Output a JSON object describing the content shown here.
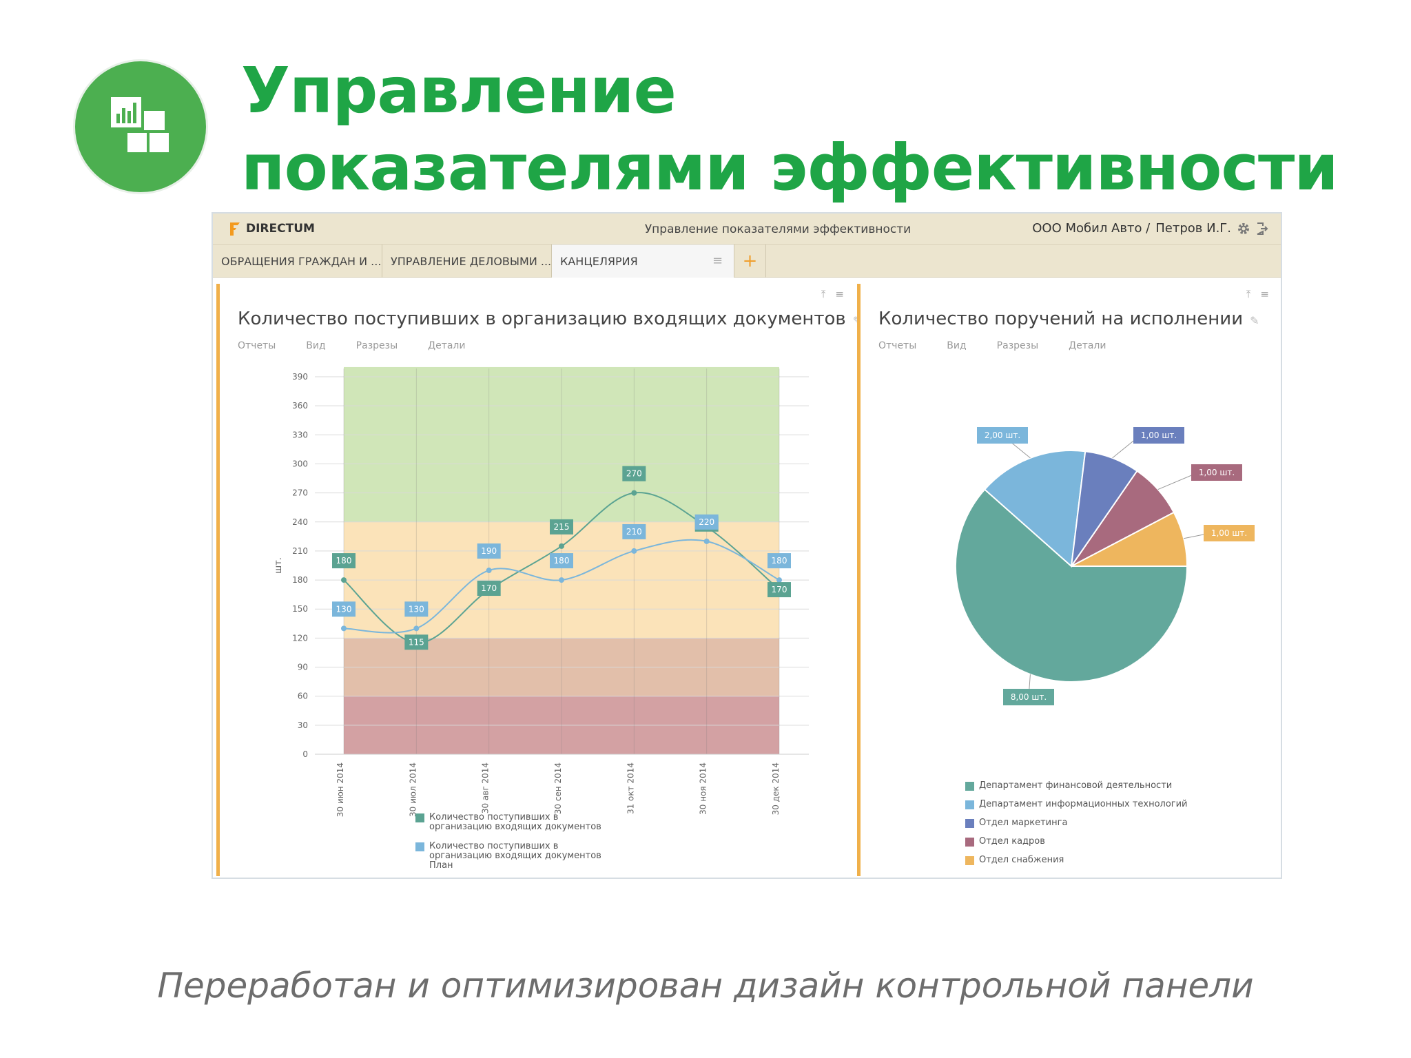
{
  "slide": {
    "title_line1": "Управление",
    "title_line2": "показателями эффективности",
    "caption": "Переработан и оптимизирован дизайн контрольной панели",
    "logo_icon": "dashboard-icon"
  },
  "app": {
    "brand": "DIRECTUM",
    "title": "Управление показателями эффективности",
    "org": "ООО Мобил Авто /",
    "user": "Петров И.Г.",
    "tabs": [
      {
        "label": "ОБРАЩЕНИЯ ГРАЖДАН И ..."
      },
      {
        "label": "УПРАВЛЕНИЕ ДЕЛОВЫМИ ..."
      },
      {
        "label": "КАНЦЕЛЯРИЯ"
      }
    ],
    "add_tab": "+"
  },
  "left_panel": {
    "title": "Количество поступивших в организацию входящих документов",
    "menu": [
      "Отчеты",
      "Вид",
      "Разрезы",
      "Детали"
    ]
  },
  "right_panel": {
    "title": "Количество поручений на исполнении",
    "menu": [
      "Отчеты",
      "Вид",
      "Разрезы",
      "Детали"
    ]
  },
  "chart_data": [
    {
      "type": "line",
      "title": "Количество поступивших в организацию входящих документов",
      "ylabel": "шт.",
      "ylim": [
        0,
        390
      ],
      "yticks": [
        0,
        30,
        60,
        90,
        120,
        150,
        180,
        210,
        240,
        270,
        300,
        330,
        360,
        390
      ],
      "categories": [
        "30 июн 2014",
        "30 июл 2014",
        "30 авг 2014",
        "30 сен 2014",
        "31 окт 2014",
        "30 ноя 2014",
        "30 дек 2014"
      ],
      "bands": [
        {
          "from": 0,
          "to": 60,
          "color": "#d3a1a3"
        },
        {
          "from": 60,
          "to": 120,
          "color": "#e2bfaa"
        },
        {
          "from": 120,
          "to": 240,
          "color": "#fbe3b9"
        },
        {
          "from": 240,
          "to": 400,
          "color": "#d0e6b8"
        }
      ],
      "series": [
        {
          "name": "Количество поступивших в организацию входящих документов",
          "color": "#5ba392",
          "values": [
            180,
            115,
            170,
            215,
            270,
            235,
            170
          ]
        },
        {
          "name": "Количество поступивших в организацию входящих документов План",
          "color": "#7bb6db",
          "values": [
            130,
            130,
            190,
            180,
            210,
            220,
            180
          ]
        }
      ],
      "grid": true,
      "legend": "bottom"
    },
    {
      "type": "pie",
      "title": "Количество поручений на исполнении",
      "slices": [
        {
          "name": "Департамент финансовой деятельности",
          "value": 8,
          "label": "8,00 шт.",
          "color": "#63a89c"
        },
        {
          "name": "Департамент информационных технологий",
          "value": 2,
          "label": "2,00 шт.",
          "color": "#7bb6db"
        },
        {
          "name": "Отдел маркетинга",
          "value": 1,
          "label": "1,00 шт.",
          "color": "#6a7fbd"
        },
        {
          "name": "Отдел кадров",
          "value": 1,
          "label": "1,00 шт.",
          "color": "#a86a7e"
        },
        {
          "name": "Отдел снабжения",
          "value": 1,
          "label": "1,00 шт.",
          "color": "#eeb65e"
        }
      ],
      "legend": "bottom"
    }
  ]
}
